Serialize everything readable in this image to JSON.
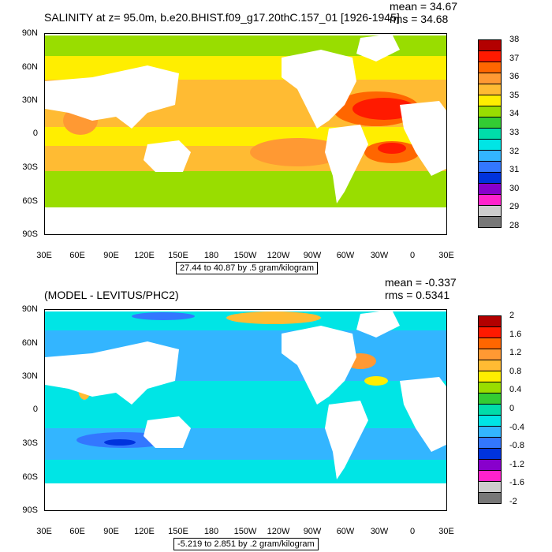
{
  "top": {
    "title": "SALINITY at z=  95.0m, b.e20.BHIST.f09_g17.20thC.157_01 [1926-1945]",
    "mean": "mean = 34.67",
    "rms": "rms = 34.68",
    "range": "27.44 to 40.87 by .5 gram/kilogram",
    "lat_labels": [
      "90N",
      "60N",
      "30N",
      "0",
      "30S",
      "60S",
      "90S"
    ],
    "lon_labels": [
      "30E",
      "60E",
      "90E",
      "120E",
      "150E",
      "180",
      "150W",
      "120W",
      "90W",
      "60W",
      "30W",
      "0",
      "30E"
    ],
    "colorbar": {
      "labels": [
        "38",
        "37",
        "36",
        "35",
        "34",
        "33",
        "32",
        "31",
        "30",
        "29",
        "28"
      ],
      "colors": [
        "#b30000",
        "#ff1a00",
        "#ff6600",
        "#ff9933",
        "#ffbb33",
        "#ffee00",
        "#99dd00",
        "#33cc33",
        "#00ddaa",
        "#00e5e5",
        "#33b5ff",
        "#3377ff",
        "#0033dd",
        "#8800cc",
        "#ff22cc",
        "#cccccc",
        "#777777"
      ]
    }
  },
  "bottom": {
    "title": "(MODEL - LEVITUS/PHC2)",
    "mean": "mean = -0.337",
    "rms": "rms = 0.5341",
    "range": "-5.219 to 2.851 by .2 gram/kilogram",
    "lat_labels": [
      "90N",
      "60N",
      "30N",
      "0",
      "30S",
      "60S",
      "90S"
    ],
    "lon_labels": [
      "30E",
      "60E",
      "90E",
      "120E",
      "150E",
      "180",
      "150W",
      "120W",
      "90W",
      "60W",
      "30W",
      "0",
      "30E"
    ],
    "colorbar": {
      "labels": [
        "2",
        "1.6",
        "1.2",
        "0.8",
        "0.4",
        "0",
        "-0.4",
        "-0.8",
        "-1.2",
        "-1.6",
        "-2"
      ],
      "colors": [
        "#b30000",
        "#ff1a00",
        "#ff6600",
        "#ff9933",
        "#ffbb33",
        "#ffee00",
        "#99dd00",
        "#33cc33",
        "#00ddaa",
        "#00e5e5",
        "#33b5ff",
        "#3377ff",
        "#0033dd",
        "#8800cc",
        "#ff22cc",
        "#cccccc",
        "#777777"
      ]
    }
  }
}
